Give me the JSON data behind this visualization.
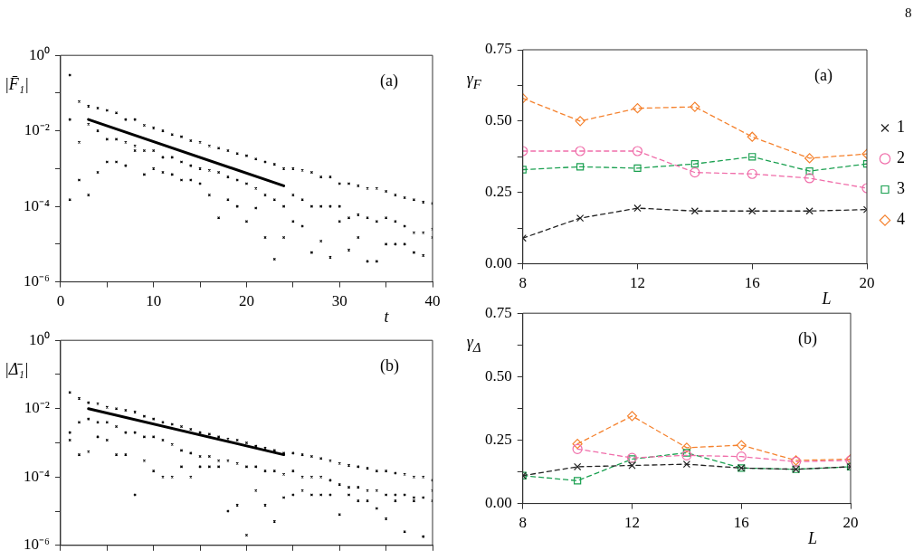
{
  "chart_data": [
    {
      "type": "scatter",
      "ylabel": "|F̄₁|",
      "xlabel": "t",
      "annotations": [
        "(a)"
      ],
      "log": "y",
      "grid": false,
      "legend": false,
      "xlim": [
        0,
        40
      ],
      "ylim": [
        1e-06,
        1
      ],
      "xticks": [
        0,
        {
          "value": 5,
          "label": null
        },
        10,
        {
          "value": 15,
          "label": null
        },
        20,
        {
          "value": 25,
          "label": null
        },
        30,
        {
          "value": 35,
          "label": null
        },
        40
      ],
      "yticks": [
        {
          "value": 1e-06,
          "label": "10⁻⁶"
        },
        {
          "value": 1e-05,
          "label": null
        },
        {
          "value": 0.0001,
          "label": "10⁻⁴"
        },
        {
          "value": 0.001,
          "label": null
        },
        {
          "value": 0.01,
          "label": "10⁻²"
        },
        {
          "value": 0.1,
          "label": null
        },
        {
          "value": 1,
          "label": "10⁰"
        }
      ],
      "series": [
        {
          "color": "#000000",
          "marker": "cross",
          "x": [
            1,
            1,
            1,
            2,
            2,
            2,
            3,
            3,
            3,
            4,
            4,
            4,
            5,
            5,
            5,
            6,
            6,
            6,
            7,
            7,
            7,
            8,
            8,
            8,
            9,
            9,
            9,
            10,
            10,
            10,
            11,
            11,
            11,
            12,
            12,
            12,
            13,
            13,
            13,
            14,
            14,
            14,
            15,
            15,
            15,
            16,
            16,
            16,
            17,
            17,
            17,
            18,
            18,
            18,
            19,
            19,
            19,
            20,
            20,
            20,
            21,
            21,
            21,
            22,
            22,
            22,
            23,
            23,
            23,
            24,
            24,
            24,
            25,
            25,
            25,
            26,
            26,
            26,
            27,
            27,
            27,
            28,
            28,
            28,
            29,
            29,
            29,
            30,
            30,
            30,
            31,
            31,
            31,
            32,
            32,
            32,
            33,
            33,
            33,
            34,
            34,
            34,
            35,
            35,
            35,
            36,
            36,
            36,
            37,
            37,
            37,
            38,
            38,
            38,
            39,
            39,
            39,
            40,
            40,
            40
          ],
          "values": [
            0.3,
            0.02,
            0.00015,
            0.06,
            0.005,
            0.0005,
            0.045,
            0.015,
            0.0002,
            0.04,
            0.01,
            0.0008,
            0.035,
            0.006,
            0.0015,
            0.03,
            0.006,
            0.0015,
            0.02,
            0.005,
            0.0012,
            0.02,
            0.004,
            0.003,
            0.014,
            0.003,
            0.0007,
            0.012,
            0.003,
            0.001,
            0.01,
            0.002,
            0.0008,
            0.008,
            0.002,
            0.0007,
            0.007,
            0.0015,
            0.0005,
            0.0055,
            0.0012,
            0.0005,
            0.005,
            0.001,
            0.0004,
            0.004,
            0.0009,
            0.0002,
            0.0035,
            0.0008,
            5e-05,
            0.003,
            0.0006,
            0.00015,
            0.0025,
            0.0005,
            0.0001,
            0.0022,
            0.0004,
            4e-05,
            0.0018,
            0.0003,
            9e-05,
            0.0015,
            0.0002,
            1.5e-05,
            0.0013,
            0.00015,
            4e-06,
            0.001,
            0.0001,
            1.5e-05,
            0.001,
            0.0002,
            4e-05,
            0.0009,
            0.00015,
            3e-05,
            0.0008,
            0.0001,
            6e-06,
            0.0006,
            0.0001,
            1.2e-05,
            0.0006,
            0.0001,
            4.5e-06,
            0.0004,
            0.0001,
            4e-05,
            0.0004,
            5e-05,
            7e-06,
            0.00035,
            6e-05,
            1.5e-05,
            0.0003,
            5e-05,
            3.5e-06,
            0.0003,
            4e-05,
            3.5e-06,
            0.00025,
            5e-05,
            1e-05,
            0.0002,
            4e-05,
            1e-05,
            0.00017,
            3e-05,
            1e-05,
            0.00015,
            2e-05,
            6e-06,
            0.00013,
            2e-05,
            5e-06,
            0.00012,
            2.5e-05,
            1.5e-05
          ]
        },
        {
          "type": "line",
          "color": "#000000",
          "marker": "none",
          "line_style": "solid",
          "x": [
            3,
            24
          ],
          "values": [
            0.02,
            0.00035
          ]
        }
      ]
    },
    {
      "type": "scatter",
      "ylabel": "|Δ̄₁|",
      "annotations": [
        "(b)"
      ],
      "log": "y",
      "grid": false,
      "legend": false,
      "tick_labels": "y",
      "xlim": [
        0,
        40
      ],
      "ylim": [
        1e-06,
        1
      ],
      "xticks": [
        0,
        {
          "value": 5,
          "label": null
        },
        10,
        {
          "value": 15,
          "label": null
        },
        20,
        {
          "value": 25,
          "label": null
        },
        30,
        {
          "value": 35,
          "label": null
        },
        40
      ],
      "yticks": [
        {
          "value": 1e-06,
          "label": "10⁻⁶"
        },
        {
          "value": 1e-05,
          "label": null
        },
        {
          "value": 0.0001,
          "label": "10⁻⁴"
        },
        {
          "value": 0.001,
          "label": null
        },
        {
          "value": 0.01,
          "label": "10⁻²"
        },
        {
          "value": 0.1,
          "label": null
        },
        {
          "value": 1,
          "label": "10⁰"
        }
      ],
      "series": [
        {
          "color": "#000000",
          "marker": "cross",
          "x": [
            1,
            1,
            1,
            2,
            2,
            2,
            3,
            3,
            3,
            4,
            4,
            4,
            5,
            5,
            5,
            6,
            6,
            6,
            7,
            7,
            7,
            8,
            8,
            8,
            9,
            9,
            9,
            10,
            10,
            10,
            11,
            11,
            11,
            12,
            12,
            12,
            13,
            13,
            13,
            14,
            14,
            14,
            15,
            15,
            15,
            16,
            16,
            16,
            17,
            17,
            17,
            18,
            18,
            18,
            19,
            19,
            19,
            20,
            20,
            20,
            21,
            21,
            21,
            22,
            22,
            22,
            23,
            23,
            23,
            24,
            24,
            24,
            25,
            25,
            25,
            26,
            26,
            26,
            27,
            27,
            27,
            28,
            28,
            28,
            29,
            29,
            29,
            30,
            30,
            30,
            31,
            31,
            31,
            32,
            32,
            32,
            33,
            33,
            33,
            34,
            34,
            34,
            35,
            35,
            35,
            36,
            36,
            36,
            37,
            37,
            37,
            38,
            38,
            38,
            39,
            39,
            39,
            40,
            40,
            40
          ],
          "values": [
            0.03,
            0.002,
            0.0012,
            0.02,
            0.004,
            0.00045,
            0.015,
            0.005,
            0.00055,
            0.014,
            0.004,
            0.0015,
            0.011,
            0.004,
            0.0012,
            0.01,
            0.003,
            0.00045,
            0.009,
            0.002,
            0.00045,
            0.008,
            0.002,
            3e-05,
            0.006,
            0.0015,
            0.0003,
            0.005,
            0.0015,
            0.00015,
            0.004,
            0.0012,
            0.0001,
            0.0035,
            0.0009,
            0.0001,
            0.003,
            0.0006,
            0.0002,
            0.0025,
            0.0005,
            0.0001,
            0.002,
            0.0004,
            0.0002,
            0.0018,
            0.0004,
            0.0002,
            0.0015,
            0.0003,
            0.0002,
            0.0013,
            0.0003,
            1e-05,
            0.0012,
            0.00025,
            1.5e-05,
            0.001,
            0.0002,
            2e-06,
            0.0008,
            0.0002,
            4e-05,
            0.0007,
            0.00015,
            1.5e-05,
            0.0006,
            0.00015,
            5e-06,
            0.0005,
            0.00012,
            2.5e-05,
            0.0005,
            0.00015,
            3e-05,
            0.00045,
            0.0001,
            4e-05,
            0.0004,
            0.0001,
            3e-05,
            0.00035,
            0.0001,
            3e-05,
            0.0003,
            8e-05,
            3e-05,
            0.00025,
            6e-05,
            8e-06,
            0.00022,
            5e-05,
            3e-05,
            0.0002,
            5e-05,
            2e-05,
            0.00018,
            4e-05,
            2e-05,
            0.00015,
            4e-05,
            1.2e-05,
            0.00015,
            3e-05,
            6e-06,
            0.00013,
            3e-05,
            2e-05,
            0.00012,
            3e-05,
            2.5e-06,
            0.0001,
            2.5e-05,
            2e-05,
            0.0001,
            2.5e-05,
            1.8e-06,
            8e-05,
            2e-05,
            4e-05
          ]
        },
        {
          "type": "line",
          "color": "#000000",
          "marker": "none",
          "line_style": "solid",
          "x": [
            3,
            24
          ],
          "values": [
            0.01,
            0.00045
          ]
        }
      ]
    },
    {
      "type": "line",
      "ylabel": "γ$_{F}$",
      "xlabel": "L",
      "annotations": [
        "(a)",
        "8"
      ],
      "grid": false,
      "legend": "right",
      "line_style": "dashed",
      "x": [
        8,
        10,
        12,
        14,
        16,
        18,
        20
      ],
      "xlim": [
        8,
        20
      ],
      "xticks": [
        8,
        12,
        16,
        20
      ],
      "ylim": [
        0,
        0.75
      ],
      "yticks": [
        {
          "value": 0,
          "label": "0.00"
        },
        {
          "value": 0.125,
          "label": null
        },
        {
          "value": 0.25,
          "label": "0.25"
        },
        {
          "value": 0.375,
          "label": null
        },
        {
          "value": 0.5,
          "label": "0.50"
        },
        {
          "value": 0.625,
          "label": null
        },
        {
          "value": 0.75,
          "label": "0.75"
        }
      ],
      "series": [
        {
          "name": "1",
          "color": "#222222",
          "marker": "cross",
          "values": [
            0.09,
            0.16,
            0.195,
            0.185,
            0.185,
            0.185,
            0.19
          ]
        },
        {
          "name": "2",
          "color": "#f06eaa",
          "marker": "circle",
          "values": [
            0.395,
            0.395,
            0.395,
            0.32,
            0.315,
            0.3,
            0.265
          ]
        },
        {
          "name": "3",
          "color": "#1aa050",
          "marker": "square",
          "values": [
            0.33,
            0.34,
            0.335,
            0.35,
            0.375,
            0.325,
            0.35
          ]
        },
        {
          "name": "4",
          "color": "#f5822e",
          "marker": "diamond",
          "values": [
            0.58,
            0.5,
            0.545,
            0.55,
            0.445,
            0.37,
            0.385
          ]
        }
      ]
    },
    {
      "type": "line",
      "ylabel": "γ$_{Δ}$",
      "xlabel": "L",
      "annotations": [
        "(b)"
      ],
      "grid": false,
      "legend": false,
      "line_style": "dashed",
      "x": [
        8,
        10,
        12,
        14,
        16,
        18,
        20
      ],
      "xlim": [
        8,
        20
      ],
      "xticks": [
        8,
        12,
        16,
        20
      ],
      "ylim": [
        0,
        0.75
      ],
      "yticks": [
        {
          "value": 0,
          "label": "0.00"
        },
        {
          "value": 0.125,
          "label": null
        },
        {
          "value": 0.25,
          "label": "0.25"
        },
        {
          "value": 0.375,
          "label": null
        },
        {
          "value": 0.5,
          "label": "0.50"
        },
        {
          "value": 0.625,
          "label": null
        },
        {
          "value": 0.75,
          "label": "0.75"
        }
      ],
      "series": [
        {
          "color": "#222222",
          "marker": "cross",
          "values": [
            0.11,
            0.145,
            0.15,
            0.155,
            0.14,
            0.135,
            0.145
          ]
        },
        {
          "color": "#f06eaa",
          "marker": "circle",
          "values": [
            null,
            0.215,
            0.18,
            0.19,
            0.185,
            0.165,
            0.17
          ]
        },
        {
          "color": "#1aa050",
          "marker": "square",
          "values": [
            0.11,
            0.09,
            0.175,
            0.2,
            0.14,
            0.135,
            0.145
          ]
        },
        {
          "color": "#f5822e",
          "marker": "diamond",
          "values": [
            null,
            0.235,
            0.345,
            0.22,
            0.23,
            0.17,
            0.175
          ]
        }
      ]
    }
  ]
}
